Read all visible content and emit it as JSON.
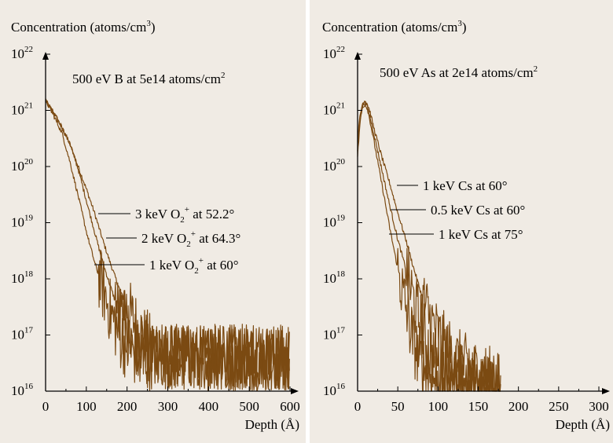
{
  "colors": {
    "panel_bg": "#f0ebe4",
    "series": "#7b4a12",
    "axis": "#000000"
  },
  "chart_data": [
    {
      "type": "line",
      "y_scale": "log",
      "title": "500 eV B at 5e14 atoms/cm",
      "title_sup": "2",
      "ylabel_main": "Concentration (atoms/cm",
      "ylabel_sup": "3",
      "ylabel_close": ")",
      "xlabel": "Depth (Å)",
      "xlim": [
        0,
        600
      ],
      "ylim": [
        1e+16,
        1e+22
      ],
      "x_ticks": [
        0,
        100,
        200,
        300,
        400,
        500,
        600
      ],
      "x_tick_labels": [
        "0",
        "100",
        "200",
        "300",
        "400",
        "500",
        "600"
      ],
      "y_ticks": [
        16,
        17,
        18,
        19,
        20,
        21,
        22
      ],
      "y_tick_base": "10",
      "y_tick_exps": [
        "16",
        "17",
        "18",
        "19",
        "20",
        "21",
        "22"
      ],
      "grid": false,
      "series": [
        {
          "label_a": "3 keV O",
          "label_sub": "2",
          "label_sup": "+",
          "label_b": " at 52.2°",
          "x": [
            0,
            20,
            40,
            60,
            80,
            100,
            120,
            140,
            160,
            180,
            200,
            220,
            240,
            260,
            280,
            300,
            340,
            400,
            450,
            500,
            560,
            600
          ],
          "y": [
            1.5e+21,
            9e+20,
            5e+20,
            2.5e+20,
            1e+20,
            4e+19,
            1.5e+19,
            5e+18,
            1.8e+18,
            7e+17,
            3e+17,
            1.6e+17,
            9e+16,
            6e+16,
            5e+16,
            4e+16,
            4e+16,
            4e+16,
            4e+16,
            4e+16,
            4e+16,
            4e+16
          ],
          "noise_from": 190
        },
        {
          "label_a": "2 keV O",
          "label_sub": "2",
          "label_sup": "+",
          "label_b": " at 64.3°",
          "x": [
            0,
            20,
            40,
            60,
            80,
            100,
            120,
            140,
            160,
            180,
            200,
            220,
            240,
            260,
            280,
            300,
            340,
            400,
            450,
            500,
            560,
            600
          ],
          "y": [
            1.5e+21,
            9e+20,
            5e+20,
            2.5e+20,
            9e+19,
            2.5e+19,
            7e+18,
            2e+18,
            7e+17,
            2.5e+17,
            1.2e+17,
            7e+16,
            5e+16,
            4e+16,
            4e+16,
            4e+16,
            4e+16,
            4e+16,
            4e+16,
            4e+16,
            4e+16,
            4e+16
          ],
          "noise_from": 170
        },
        {
          "label_a": "1 keV O",
          "label_sub": "2",
          "label_sup": "+",
          "label_b": " at 60°",
          "x": [
            0,
            20,
            40,
            60,
            80,
            100,
            120,
            140,
            160,
            180,
            200,
            220,
            240,
            260,
            280,
            300,
            340,
            400,
            450,
            500,
            560,
            600
          ],
          "y": [
            1.5e+21,
            8e+20,
            4e+20,
            1.2e+20,
            3e+19,
            7e+18,
            2e+18,
            7e+17,
            2.5e+17,
            1e+17,
            6e+16,
            4.5e+16,
            4e+16,
            4e+16,
            4e+16,
            4e+16,
            4e+16,
            4e+16,
            4e+16,
            4e+16,
            4e+16,
            4e+16
          ],
          "noise_from": 130
        }
      ]
    },
    {
      "type": "line",
      "y_scale": "log",
      "title": "500 eV As at 2e14 atoms/cm",
      "title_sup": "2",
      "ylabel_main": "Concentration (atoms/cm",
      "ylabel_sup": "3",
      "ylabel_close": ")",
      "xlabel": "Depth (Å)",
      "xlim": [
        0,
        300
      ],
      "ylim": [
        1e+16,
        1e+22
      ],
      "x_ticks": [
        0,
        50,
        100,
        150,
        200,
        250,
        300
      ],
      "x_tick_labels": [
        "0",
        "50",
        "100",
        "150",
        "200",
        "250",
        "300"
      ],
      "y_ticks": [
        16,
        17,
        18,
        19,
        20,
        21,
        22
      ],
      "y_tick_base": "10",
      "y_tick_exps": [
        "16",
        "17",
        "18",
        "19",
        "20",
        "21",
        "22"
      ],
      "grid": false,
      "series": [
        {
          "label_a": "1 keV Cs at 60°",
          "label_sub": "",
          "label_sup": "",
          "label_b": "",
          "x": [
            0,
            3,
            6,
            9,
            12,
            15,
            20,
            30,
            40,
            50,
            60,
            70,
            80,
            90,
            100,
            110,
            120,
            130,
            140,
            150,
            160,
            170,
            178
          ],
          "y": [
            3e+20,
            8e+20,
            1.3e+21,
            1.5e+21,
            1.3e+21,
            1e+21,
            5e+20,
            1.5e+20,
            5e+19,
            1.5e+19,
            5e+18,
            1.5e+18,
            5e+17,
            2e+17,
            1e+17,
            6e+16,
            4e+16,
            3e+16,
            2.5e+16,
            2e+16,
            1.8e+16,
            1.5e+16,
            1.2e+16
          ],
          "noise_from": 80
        },
        {
          "label_a": "0.5 keV Cs at 60°",
          "label_sub": "",
          "label_sup": "",
          "label_b": "",
          "x": [
            0,
            3,
            6,
            9,
            12,
            15,
            20,
            30,
            40,
            50,
            60,
            70,
            80,
            90,
            100,
            110,
            120,
            130,
            140,
            150,
            160,
            170,
            178
          ],
          "y": [
            2e+20,
            7e+20,
            1.2e+21,
            1.4e+21,
            1.2e+21,
            8e+20,
            4e+20,
            9e+19,
            2e+19,
            5e+18,
            1.5e+18,
            4e+17,
            1.3e+17,
            5e+16,
            3e+16,
            2.5e+16,
            2e+16,
            1.8e+16,
            1.5e+16,
            1.3e+16,
            1.2e+16,
            1.1e+16,
            1e+16
          ],
          "noise_from": 60
        },
        {
          "label_a": "1 keV Cs at 75°",
          "label_sub": "",
          "label_sup": "",
          "label_b": "",
          "x": [
            0,
            3,
            6,
            9,
            12,
            15,
            20,
            30,
            40,
            50,
            60,
            70,
            80,
            90,
            100,
            110,
            120,
            130,
            140,
            150,
            160,
            170,
            178
          ],
          "y": [
            1.5e+20,
            6e+20,
            1.1e+21,
            1.3e+21,
            1.1e+21,
            7e+20,
            3e+20,
            5e+19,
            8e+18,
            1.5e+18,
            3e+17,
            7e+16,
            3e+16,
            2e+16,
            1.5e+16,
            1.3e+16,
            1.2e+16,
            1.1e+16,
            1e+16,
            1e+16,
            1e+16,
            1e+16,
            1e+16
          ],
          "noise_from": 50
        }
      ]
    }
  ]
}
